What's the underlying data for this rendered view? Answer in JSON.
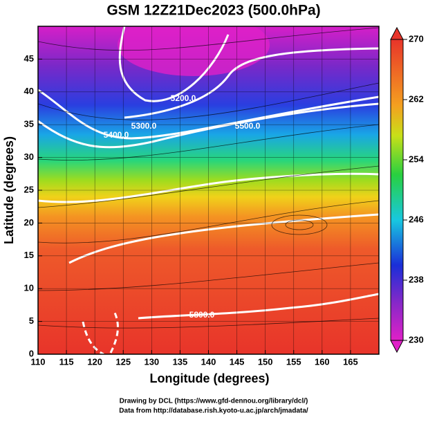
{
  "title": "GSM 12Z21Dec2023 (500.0hPa)",
  "x_axis": {
    "label": "Longitude (degrees)",
    "lim": [
      110,
      170
    ],
    "ticks": [
      110,
      115,
      120,
      125,
      130,
      135,
      140,
      145,
      150,
      155,
      160,
      165
    ]
  },
  "y_axis": {
    "label": "Latitude  (degrees)",
    "lim": [
      0,
      50
    ],
    "ticks": [
      0,
      5,
      10,
      15,
      20,
      25,
      30,
      35,
      40,
      45
    ]
  },
  "colorbar": {
    "lim": [
      230,
      270
    ],
    "ticks": [
      230,
      238,
      246,
      254,
      262,
      270
    ]
  },
  "contour_labels": [
    "5200.0",
    "5300.0",
    "5400.0",
    "5500.0",
    "5800.0"
  ],
  "credits": [
    "Drawing by DCL (https://www.gfd-dennou.org/library/dcl/)",
    "Data from http://database.rish.kyoto-u.ac.jp/arch/jmadata/"
  ]
}
